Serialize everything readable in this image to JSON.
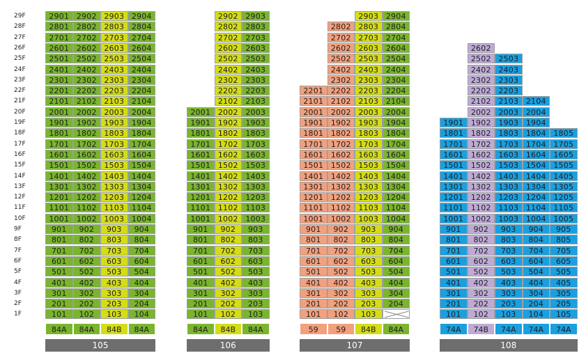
{
  "floors": [
    "29F",
    "28F",
    "27F",
    "26F",
    "25F",
    "24F",
    "23F",
    "22F",
    "21F",
    "20F",
    "19F",
    "18F",
    "17F",
    "16F",
    "15F",
    "14F",
    "13F",
    "12F",
    "11F",
    "10F",
    "9F",
    "8F",
    "7F",
    "6F",
    "5F",
    "4F",
    "3F",
    "2F",
    "1F"
  ],
  "colors": {
    "green": "#7ab52d",
    "yellow": "#d4dd16",
    "salmon": "#f2a07e",
    "purple": "#bfaad6",
    "blue": "#1aa0e0",
    "building_bar": "#6e6e6e"
  },
  "buildings": [
    {
      "name": "105",
      "types": [
        {
          "label": "84A",
          "color": "green"
        },
        {
          "label": "84A",
          "color": "green"
        },
        {
          "label": "84B",
          "color": "yellow"
        },
        {
          "label": "84A",
          "color": "green"
        }
      ],
      "top_floors": [
        29,
        29,
        29,
        29
      ],
      "bottom_floor": 1,
      "cells": {
        "29": [
          "2901",
          "2902",
          "2903",
          "2904"
        ],
        "28": [
          "2801",
          "2802",
          "2803",
          "2804"
        ],
        "27": [
          "2701",
          "2702",
          "2703",
          "2704"
        ],
        "26": [
          "2601",
          "2602",
          "2603",
          "2604"
        ],
        "25": [
          "2501",
          "2502",
          "2503",
          "2504"
        ],
        "24": [
          "2401",
          "2402",
          "2403",
          "2404"
        ],
        "23": [
          "2301",
          "2302",
          "2303",
          "2304"
        ],
        "22": [
          "2201",
          "2202",
          "2203",
          "2204"
        ],
        "21": [
          "2101",
          "2102",
          "2103",
          "2104"
        ],
        "20": [
          "2001",
          "2002",
          "2003",
          "2004"
        ],
        "19": [
          "1901",
          "1902",
          "1903",
          "1904"
        ],
        "18": [
          "1801",
          "1802",
          "1803",
          "1804"
        ],
        "17": [
          "1701",
          "1702",
          "1703",
          "1704"
        ],
        "16": [
          "1601",
          "1602",
          "1603",
          "1604"
        ],
        "15": [
          "1501",
          "1502",
          "1503",
          "1504"
        ],
        "14": [
          "1401",
          "1402",
          "1403",
          "1404"
        ],
        "13": [
          "1301",
          "1302",
          "1303",
          "1304"
        ],
        "12": [
          "1201",
          "1202",
          "1203",
          "1204"
        ],
        "11": [
          "1101",
          "1102",
          "1103",
          "1104"
        ],
        "10": [
          "1001",
          "1002",
          "1003",
          "1004"
        ],
        "9": [
          "901",
          "902",
          "903",
          "904"
        ],
        "8": [
          "801",
          "802",
          "803",
          "804"
        ],
        "7": [
          "701",
          "702",
          "703",
          "704"
        ],
        "6": [
          "601",
          "602",
          "603",
          "604"
        ],
        "5": [
          "501",
          "502",
          "503",
          "504"
        ],
        "4": [
          "401",
          "402",
          "403",
          "404"
        ],
        "3": [
          "301",
          "302",
          "303",
          "304"
        ],
        "2": [
          "201",
          "202",
          "203",
          "204"
        ],
        "1": [
          "101",
          "102",
          "103",
          "104"
        ]
      }
    },
    {
      "name": "106",
      "types": [
        {
          "label": "84A",
          "color": "green"
        },
        {
          "label": "84B",
          "color": "yellow"
        },
        {
          "label": "84A",
          "color": "green"
        }
      ],
      "cells": {
        "29": [
          null,
          "2902",
          "2903"
        ],
        "28": [
          null,
          "2802",
          "2803"
        ],
        "27": [
          null,
          "2702",
          "2703"
        ],
        "26": [
          null,
          "2602",
          "2603"
        ],
        "25": [
          null,
          "2502",
          "2503"
        ],
        "24": [
          null,
          "2402",
          "2403"
        ],
        "23": [
          null,
          "2302",
          "2303"
        ],
        "22": [
          null,
          "2202",
          "2203"
        ],
        "21": [
          null,
          "2102",
          "2103"
        ],
        "20": [
          "2001",
          "2002",
          "2003"
        ],
        "19": [
          "1901",
          "1902",
          "1903"
        ],
        "18": [
          "1801",
          "1802",
          "1803"
        ],
        "17": [
          "1701",
          "1702",
          "1703"
        ],
        "16": [
          "1601",
          "1602",
          "1603"
        ],
        "15": [
          "1501",
          "1502",
          "1503"
        ],
        "14": [
          "1401",
          "1402",
          "1403"
        ],
        "13": [
          "1301",
          "1302",
          "1303"
        ],
        "12": [
          "1201",
          "1202",
          "1203"
        ],
        "11": [
          "1101",
          "1102",
          "1103"
        ],
        "10": [
          "1001",
          "1002",
          "1003"
        ],
        "9": [
          "901",
          "902",
          "903"
        ],
        "8": [
          "801",
          "802",
          "803"
        ],
        "7": [
          "701",
          "702",
          "703"
        ],
        "6": [
          "601",
          "602",
          "603"
        ],
        "5": [
          "501",
          "502",
          "503"
        ],
        "4": [
          "401",
          "402",
          "403"
        ],
        "3": [
          "301",
          "302",
          "303"
        ],
        "2": [
          "201",
          "202",
          "203"
        ],
        "1": [
          "101",
          "102",
          "103"
        ]
      }
    },
    {
      "name": "107",
      "types": [
        {
          "label": "59",
          "color": "salmon"
        },
        {
          "label": "59",
          "color": "salmon"
        },
        {
          "label": "84B",
          "color": "yellow"
        },
        {
          "label": "84A",
          "color": "green"
        }
      ],
      "cells": {
        "29": [
          null,
          null,
          "2903",
          "2904"
        ],
        "28": [
          null,
          "2802",
          "2803",
          "2804"
        ],
        "27": [
          null,
          "2702",
          "2703",
          "2704"
        ],
        "26": [
          null,
          "2602",
          "2603",
          "2604"
        ],
        "25": [
          null,
          "2502",
          "2503",
          "2504"
        ],
        "24": [
          null,
          "2402",
          "2403",
          "2404"
        ],
        "23": [
          null,
          "2302",
          "2303",
          "2304"
        ],
        "22": [
          "2201",
          "2202",
          "2203",
          "2204"
        ],
        "21": [
          "2101",
          "2102",
          "2103",
          "2104"
        ],
        "20": [
          "2001",
          "2002",
          "2003",
          "2004"
        ],
        "19": [
          "1901",
          "1902",
          "1903",
          "1904"
        ],
        "18": [
          "1801",
          "1802",
          "1803",
          "1804"
        ],
        "17": [
          "1701",
          "1702",
          "1703",
          "1704"
        ],
        "16": [
          "1601",
          "1602",
          "1603",
          "1604"
        ],
        "15": [
          "1501",
          "1502",
          "1503",
          "1504"
        ],
        "14": [
          "1401",
          "1402",
          "1403",
          "1404"
        ],
        "13": [
          "1301",
          "1302",
          "1303",
          "1304"
        ],
        "12": [
          "1201",
          "1202",
          "1203",
          "1204"
        ],
        "11": [
          "1101",
          "1102",
          "1103",
          "1104"
        ],
        "10": [
          "1001",
          "1002",
          "1003",
          "1004"
        ],
        "9": [
          "901",
          "902",
          "903",
          "904"
        ],
        "8": [
          "801",
          "802",
          "803",
          "804"
        ],
        "7": [
          "701",
          "702",
          "703",
          "704"
        ],
        "6": [
          "601",
          "602",
          "603",
          "604"
        ],
        "5": [
          "501",
          "502",
          "503",
          "504"
        ],
        "4": [
          "401",
          "402",
          "403",
          "404"
        ],
        "3": [
          "301",
          "302",
          "303",
          "304"
        ],
        "2": [
          "201",
          "202",
          "203",
          "204"
        ],
        "1": [
          "101",
          "102",
          "103",
          "X"
        ]
      }
    },
    {
      "name": "108",
      "types": [
        {
          "label": "74A",
          "color": "blue"
        },
        {
          "label": "74B",
          "color": "purple"
        },
        {
          "label": "74A",
          "color": "blue"
        },
        {
          "label": "74A",
          "color": "blue"
        },
        {
          "label": "74A",
          "color": "blue"
        }
      ],
      "cells": {
        "26": [
          null,
          "2602",
          null,
          null,
          null
        ],
        "25": [
          null,
          "2502",
          "2503",
          null,
          null
        ],
        "24": [
          null,
          "2402",
          "2403",
          null,
          null
        ],
        "23": [
          null,
          "2302",
          "2303",
          null,
          null
        ],
        "22": [
          null,
          "2202",
          "2203",
          null,
          null
        ],
        "21": [
          null,
          "2102",
          "2103",
          "2104",
          null
        ],
        "20": [
          null,
          "2002",
          "2003",
          "2004",
          null
        ],
        "19": [
          "1901",
          "1902",
          "1903",
          "1904",
          null
        ],
        "18": [
          "1801",
          "1802",
          "1803",
          "1804",
          "1805"
        ],
        "17": [
          "1701",
          "1702",
          "1703",
          "1704",
          "1705"
        ],
        "16": [
          "1601",
          "1602",
          "1603",
          "1604",
          "1605"
        ],
        "15": [
          "1501",
          "1502",
          "1503",
          "1504",
          "1505"
        ],
        "14": [
          "1401",
          "1402",
          "1403",
          "1404",
          "1405"
        ],
        "13": [
          "1301",
          "1302",
          "1303",
          "1304",
          "1305"
        ],
        "12": [
          "1201",
          "1202",
          "1203",
          "1204",
          "1205"
        ],
        "11": [
          "1101",
          "1102",
          "1103",
          "1104",
          "1105"
        ],
        "10": [
          "1001",
          "1002",
          "1003",
          "1004",
          "1005"
        ],
        "9": [
          "901",
          "902",
          "903",
          "904",
          "905"
        ],
        "8": [
          "801",
          "802",
          "803",
          "804",
          "805"
        ],
        "7": [
          "701",
          "702",
          "703",
          "704",
          "705"
        ],
        "6": [
          "601",
          "602",
          "603",
          "604",
          "605"
        ],
        "5": [
          "501",
          "502",
          "503",
          "504",
          "505"
        ],
        "4": [
          "401",
          "402",
          "403",
          "404",
          "405"
        ],
        "3": [
          "301",
          "302",
          "303",
          "304",
          "305"
        ],
        "2": [
          "201",
          "202",
          "203",
          "204",
          "205"
        ],
        "1": [
          "101",
          "102",
          "103",
          "104",
          "105"
        ]
      }
    }
  ]
}
